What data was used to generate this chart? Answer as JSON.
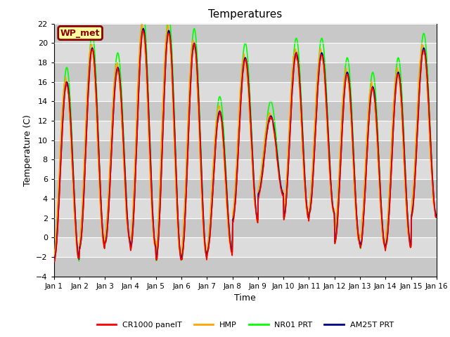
{
  "title": "Temperatures",
  "xlabel": "Time",
  "ylabel": "Temperature (C)",
  "ylim": [
    -4,
    22
  ],
  "xlim": [
    0,
    15
  ],
  "yticks": [
    -4,
    -2,
    0,
    2,
    4,
    6,
    8,
    10,
    12,
    14,
    16,
    18,
    20,
    22
  ],
  "xtick_labels": [
    "Jan 1",
    "Jan 2",
    "Jan 3",
    "Jan 4",
    "Jan 5",
    "Jan 6",
    "Jan 7",
    "Jan 8",
    "Jan 9",
    "Jan 10",
    "Jan 11",
    "Jan 12",
    "Jan 13",
    "Jan 14",
    "Jan 15",
    "Jan 16"
  ],
  "legend": [
    {
      "label": "CR1000 panelT",
      "color": "#FF0000"
    },
    {
      "label": "HMP",
      "color": "#FFA500"
    },
    {
      "label": "NR01 PRT",
      "color": "#00FF00"
    },
    {
      "label": "AM25T PRT",
      "color": "#00008B"
    }
  ],
  "station_label": "WP_met",
  "plot_bg": "#DCDCDC",
  "alt_bg": "#C8C8C8",
  "figure_background": "#FFFFFF",
  "n_points": 720,
  "days": 15,
  "peaks": [
    16.0,
    19.5,
    17.5,
    21.5,
    21.3,
    20.0,
    13.0,
    18.5,
    12.5,
    19.0,
    19.0,
    17.0,
    15.5,
    17.0,
    19.5
  ],
  "troughs": [
    -2.3,
    -1.0,
    -0.5,
    -1.0,
    -2.2,
    -2.0,
    -1.5,
    1.8,
    4.5,
    2.0,
    2.5,
    -0.5,
    -1.0,
    -0.8,
    2.2
  ],
  "green_extra": 1.5,
  "orange_lag": 0.04,
  "line_width": 1.2
}
